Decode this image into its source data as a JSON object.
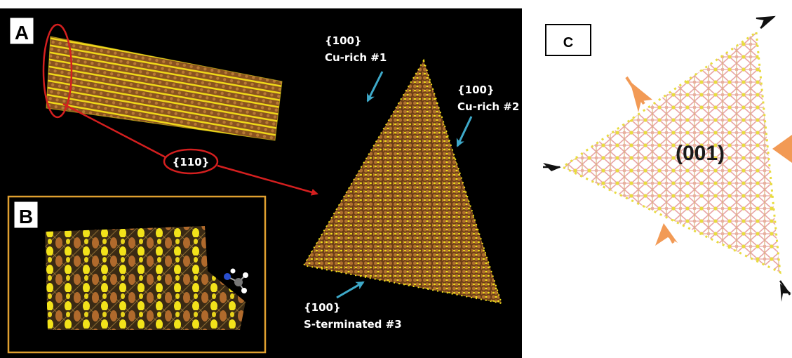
{
  "panels": {
    "a": {
      "letter": "A"
    },
    "b": {
      "letter": "B"
    },
    "c": {
      "letter": "C",
      "facet": "(001)"
    }
  },
  "labels": {
    "plane_110": "{110}",
    "facet1_index": "{100}",
    "facet1_name": "Cu-rich #1",
    "facet2_index": "{100}",
    "facet2_name": "Cu-rich  #2",
    "facet3_index": "{100}",
    "facet3_name": "S-terminated  #3"
  },
  "colors": {
    "background_dark": "#000000",
    "copper": "#a0622a",
    "sulfur": "#f2e21a",
    "highlight_red": "#d41f1f",
    "facet_arrow": "#3ea9c9",
    "frame_b": "#e0a030",
    "pink_bond": "#e9a6a6",
    "orange_arrow": "#f29a55",
    "black_arrow": "#111111"
  }
}
